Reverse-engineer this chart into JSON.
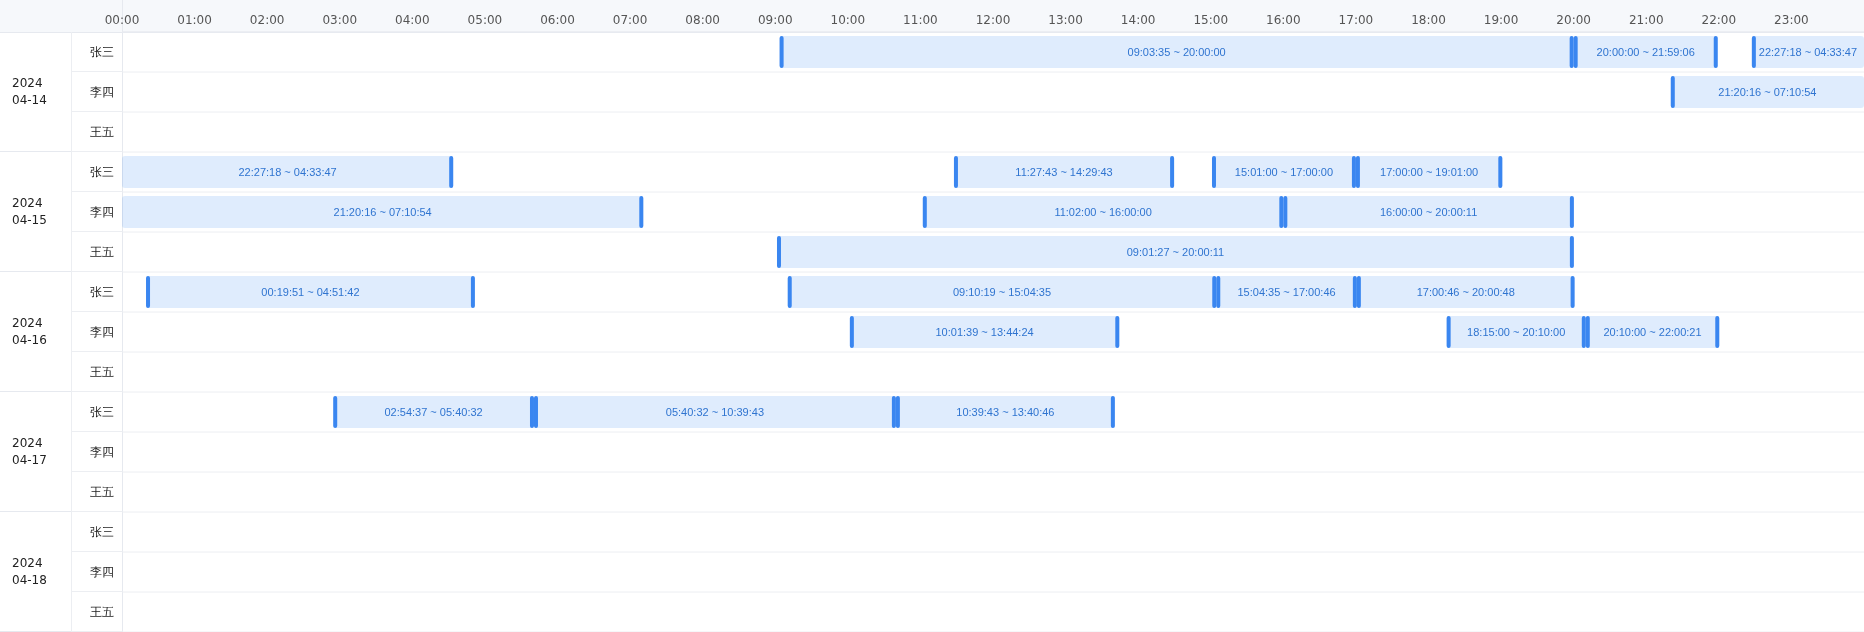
{
  "chart_data": {
    "type": "bar",
    "orientation": "horizontal",
    "grid": "y",
    "categories": [
      "张三",
      "李四",
      "王五",
      "张三",
      "李四",
      "王五",
      "张三",
      "李四",
      "王五",
      "张三",
      "李四",
      "王五",
      "张三",
      "李四",
      "王五"
    ],
    "annotations": [
      "2024 04-14",
      "2024 04-15",
      "2024 04-16",
      "2024 04-17",
      "2024 04-18"
    ],
    "xlim": [
      0,
      24
    ],
    "xticks": [
      {
        "value": 0,
        "label": "00:00"
      },
      {
        "value": 1,
        "label": "01:00"
      },
      {
        "value": 2,
        "label": "02:00"
      },
      {
        "value": 3,
        "label": "03:00"
      },
      {
        "value": 4,
        "label": "04:00"
      },
      {
        "value": 5,
        "label": "05:00"
      },
      {
        "value": 6,
        "label": "06:00"
      },
      {
        "value": 7,
        "label": "07:00"
      },
      {
        "value": 8,
        "label": "08:00"
      },
      {
        "value": 9,
        "label": "09:00"
      },
      {
        "value": 10,
        "label": "10:00"
      },
      {
        "value": 11,
        "label": "11:00"
      },
      {
        "value": 12,
        "label": "12:00"
      },
      {
        "value": 13,
        "label": "13:00"
      },
      {
        "value": 14,
        "label": "14:00"
      },
      {
        "value": 15,
        "label": "15:00"
      },
      {
        "value": 16,
        "label": "16:00"
      },
      {
        "value": 17,
        "label": "17:00"
      },
      {
        "value": 18,
        "label": "18:00"
      },
      {
        "value": 19,
        "label": "19:00"
      },
      {
        "value": 20,
        "label": "20:00"
      },
      {
        "value": 21,
        "label": "21:00"
      },
      {
        "value": 22,
        "label": "22:00"
      },
      {
        "value": 23,
        "label": "23:00"
      }
    ],
    "series": [
      {
        "color": "#3a86f0",
        "base": [
          9.06,
          21.338,
          null,
          0,
          0,
          9.024,
          0.331,
          10.028,
          null,
          2.91,
          null,
          null,
          null,
          null,
          null
        ],
        "values": [
          10.94,
          2.662,
          null,
          4.563,
          7.182,
          10.979,
          4.531,
          3.712,
          null,
          2.766,
          null,
          null,
          null,
          null,
          null
        ],
        "value_labels": [
          "09:03:35 ~ 20:00:00",
          "21:20:16 ~ 07:10:54",
          null,
          "22:27:18 ~ 04:33:47",
          "21:20:16 ~ 07:10:54",
          "09:01:27 ~ 20:00:11",
          "00:19:51 ~ 04:51:42",
          "10:01:39 ~ 13:44:24",
          null,
          "02:54:37 ~ 05:40:32",
          null,
          null,
          null,
          null,
          null
        ]
      },
      {
        "color": "#3a86f0",
        "base": [
          20,
          null,
          null,
          11.462,
          11.033,
          null,
          9.172,
          18.25,
          null,
          5.676,
          null,
          null,
          null,
          null,
          null
        ],
        "values": [
          1.985,
          null,
          null,
          3.033,
          4.967,
          null,
          5.904,
          1.917,
          null,
          4.986,
          null,
          null,
          null,
          null,
          null
        ],
        "value_labels": [
          "20:00:00 ~ 21:59:06",
          null,
          null,
          "11:27:43 ~ 14:29:43",
          "11:02:00 ~ 16:00:00",
          null,
          "09:10:19 ~ 15:04:35",
          "18:15:00 ~ 20:10:00",
          null,
          "05:40:32 ~ 10:39:43",
          null,
          null,
          null,
          null,
          null
        ]
      },
      {
        "color": "#3a86f0",
        "base": [
          22.455,
          null,
          null,
          15.017,
          16,
          null,
          15.076,
          20.167,
          null,
          10.662,
          null,
          null,
          null,
          null,
          null
        ],
        "values": [
          1.545,
          null,
          null,
          1.983,
          4.003,
          null,
          1.937,
          1.839,
          null,
          3.017,
          null,
          null,
          null,
          null,
          null
        ],
        "value_labels": [
          "22:27:18 ~ 04:33:47",
          null,
          null,
          "15:01:00 ~ 17:00:00",
          "16:00:00 ~ 20:00:11",
          null,
          "15:04:35 ~ 17:00:46",
          "20:10:00 ~ 22:00:21",
          null,
          "10:39:43 ~ 13:40:46",
          null,
          null,
          null,
          null,
          null
        ]
      },
      {
        "color": "#3a86f0",
        "base": [
          null,
          null,
          null,
          17,
          null,
          null,
          17.013,
          null,
          null,
          null,
          null,
          null,
          null,
          null,
          null
        ],
        "values": [
          null,
          null,
          null,
          2.017,
          null,
          null,
          3,
          null,
          null,
          null,
          null,
          null,
          null,
          null,
          null
        ],
        "value_labels": [
          null,
          null,
          null,
          "17:00:00 ~ 19:01:00",
          null,
          null,
          "17:00:46 ~ 20:00:48",
          null,
          null,
          null,
          null,
          null,
          null,
          null,
          null
        ]
      }
    ]
  }
}
